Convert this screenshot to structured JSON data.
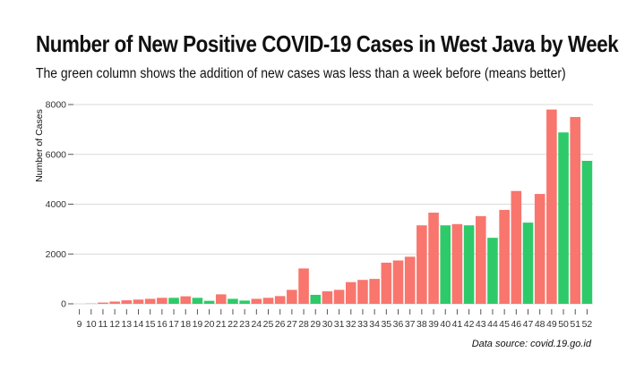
{
  "title": "Number of New Positive COVID-19 Cases in West Java by Week",
  "subtitle": "The green column shows the addition of new cases was less than a week before (means better)",
  "source": "Data source: covid.19.go.id",
  "colors": {
    "increase": "#f8766d",
    "decrease": "#2eca6a",
    "grid": "#d9d9d9"
  },
  "chart_data": {
    "type": "bar",
    "ylabel": "Number of Cases",
    "xlabel": "",
    "ylim": [
      0,
      8000
    ],
    "yticks": [
      0,
      2000,
      4000,
      6000,
      8000
    ],
    "grid": true,
    "legend": "none",
    "categories": [
      "9",
      "10",
      "11",
      "12",
      "13",
      "14",
      "15",
      "16",
      "17",
      "18",
      "19",
      "20",
      "21",
      "22",
      "23",
      "24",
      "25",
      "26",
      "27",
      "28",
      "29",
      "30",
      "31",
      "32",
      "33",
      "34",
      "35",
      "36",
      "37",
      "38",
      "39",
      "40",
      "41",
      "42",
      "43",
      "44",
      "45",
      "46",
      "47",
      "48",
      "49",
      "50",
      "51",
      "52"
    ],
    "values": [
      0,
      10,
      50,
      90,
      140,
      170,
      200,
      240,
      240,
      300,
      240,
      120,
      380,
      200,
      130,
      200,
      240,
      310,
      560,
      1420,
      360,
      500,
      560,
      870,
      960,
      1000,
      1650,
      1740,
      1890,
      3150,
      3660,
      3150,
      3200,
      3150,
      3520,
      2650,
      3770,
      4530,
      3260,
      4410,
      7800,
      6880,
      7500,
      5740
    ],
    "status": [
      "increase",
      "increase",
      "increase",
      "increase",
      "increase",
      "increase",
      "increase",
      "increase",
      "decrease",
      "increase",
      "decrease",
      "decrease",
      "increase",
      "decrease",
      "decrease",
      "increase",
      "increase",
      "increase",
      "increase",
      "increase",
      "decrease",
      "increase",
      "increase",
      "increase",
      "increase",
      "increase",
      "increase",
      "increase",
      "increase",
      "increase",
      "increase",
      "decrease",
      "increase",
      "decrease",
      "increase",
      "decrease",
      "increase",
      "increase",
      "decrease",
      "increase",
      "increase",
      "decrease",
      "increase",
      "decrease"
    ]
  }
}
